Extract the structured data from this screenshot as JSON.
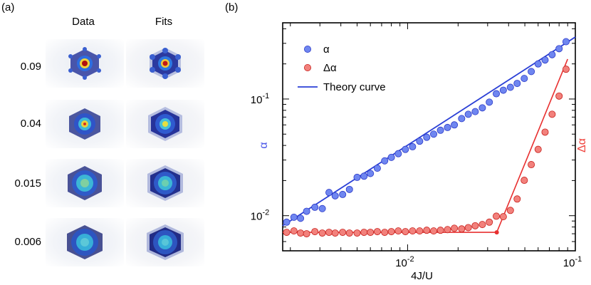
{
  "panel_a": {
    "label": "(a)",
    "col_headers": [
      "Data",
      "Fits"
    ],
    "rows": [
      "0.09",
      "0.04",
      "0.015",
      "0.006"
    ]
  },
  "panel_b": {
    "label": "(b)"
  },
  "chart_data": {
    "type": "scatter",
    "xlabel": "4J/U",
    "ylabel_left": "α",
    "ylabel_right": "Δα",
    "xscale": "log",
    "yscale": "log",
    "xlim": [
      0.0018,
      0.1
    ],
    "ylim": [
      0.005,
      0.45
    ],
    "x_tick_labels": [
      "10^-2",
      "10^-1"
    ],
    "y_tick_labels": [
      "10^-2",
      "10^-1"
    ],
    "legend": {
      "placement": "top-left",
      "entries": [
        "α",
        "Δα",
        "Theory curve"
      ]
    },
    "colors": {
      "alpha": "#4f5be8",
      "delta_alpha": "#f0453f",
      "theory": "#2a3fd6",
      "delta_fit": "#e83030"
    },
    "series": [
      {
        "name": "α",
        "type": "scatter",
        "x": [
          0.0019,
          0.0021,
          0.0023,
          0.0025,
          0.0028,
          0.0031,
          0.0034,
          0.0037,
          0.0041,
          0.0045,
          0.005,
          0.0055,
          0.006,
          0.0066,
          0.0073,
          0.008,
          0.0088,
          0.0097,
          0.0107,
          0.0118,
          0.013,
          0.0143,
          0.0157,
          0.0173,
          0.019,
          0.021,
          0.023,
          0.0253,
          0.0279,
          0.0307,
          0.0338,
          0.0372,
          0.041,
          0.045,
          0.0496,
          0.0546,
          0.06,
          0.066,
          0.0727,
          0.08,
          0.088
        ],
        "y": [
          0.0088,
          0.0097,
          0.0095,
          0.0109,
          0.0118,
          0.0115,
          0.0158,
          0.0148,
          0.0152,
          0.0168,
          0.0213,
          0.0218,
          0.023,
          0.0255,
          0.0295,
          0.0316,
          0.034,
          0.037,
          0.039,
          0.0435,
          0.047,
          0.05,
          0.054,
          0.057,
          0.06,
          0.068,
          0.074,
          0.078,
          0.084,
          0.094,
          0.111,
          0.119,
          0.126,
          0.136,
          0.15,
          0.172,
          0.2,
          0.216,
          0.24,
          0.27,
          0.31
        ]
      },
      {
        "name": "Δα",
        "type": "scatter",
        "x": [
          0.0019,
          0.0021,
          0.0023,
          0.0025,
          0.0028,
          0.0031,
          0.0034,
          0.0037,
          0.0041,
          0.0045,
          0.005,
          0.0055,
          0.006,
          0.0066,
          0.0073,
          0.008,
          0.0088,
          0.0097,
          0.0107,
          0.0118,
          0.013,
          0.0143,
          0.0157,
          0.0173,
          0.019,
          0.021,
          0.023,
          0.0253,
          0.0279,
          0.0307,
          0.0338,
          0.0372,
          0.041,
          0.045,
          0.0496,
          0.0546,
          0.06,
          0.066,
          0.0727,
          0.08,
          0.088
        ],
        "y": [
          0.0072,
          0.0074,
          0.0071,
          0.007,
          0.0073,
          0.0071,
          0.0072,
          0.0071,
          0.0072,
          0.0071,
          0.0071,
          0.0072,
          0.0072,
          0.0073,
          0.0072,
          0.0073,
          0.0074,
          0.0073,
          0.0074,
          0.0074,
          0.0075,
          0.0074,
          0.0075,
          0.0076,
          0.0078,
          0.0077,
          0.0079,
          0.0082,
          0.0084,
          0.0088,
          0.0099,
          0.0098,
          0.0111,
          0.0139,
          0.0201,
          0.0274,
          0.037,
          0.052,
          0.074,
          0.106,
          0.18
        ]
      }
    ],
    "fit_lines": [
      {
        "name": "Theory curve",
        "x": [
          0.0018,
          0.1
        ],
        "y": [
          0.0082,
          0.34
        ]
      },
      {
        "name": "Δα fit",
        "x": [
          0.0018,
          0.034,
          0.09
        ],
        "y": [
          0.0072,
          0.0072,
          0.22
        ]
      }
    ]
  }
}
